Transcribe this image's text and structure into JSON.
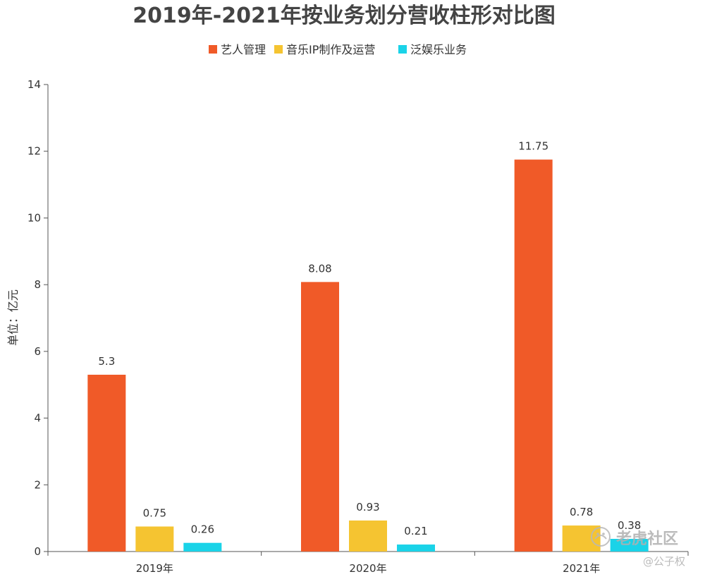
{
  "chart_data": {
    "type": "bar",
    "title": "2019年-2021年按业务划分营收柱形对比图",
    "ylabel": "单位：亿元",
    "xlabel": "",
    "categories": [
      "2019年",
      "2020年",
      "2021年"
    ],
    "ylim": [
      0,
      14
    ],
    "yticks": [
      0,
      2,
      4,
      6,
      8,
      10,
      12,
      14
    ],
    "grid": false,
    "legend_position": "top-center",
    "series": [
      {
        "name": "艺人管理",
        "values": [
          5.3,
          8.08,
          11.75
        ],
        "color": "#f05a28"
      },
      {
        "name": "音乐IP制作及运营",
        "values": [
          0.75,
          0.93,
          0.78
        ],
        "color": "#f5c431"
      },
      {
        "name": "泛娱乐业务",
        "values": [
          0.26,
          0.21,
          0.38
        ],
        "color": "#1ad3e8"
      }
    ],
    "data_labels": [
      [
        "5.3",
        "8.08",
        "11.75"
      ],
      [
        "0.75",
        "0.93",
        "0.78"
      ],
      [
        "0.26",
        "0.21",
        "0.38"
      ]
    ]
  },
  "watermark": {
    "brand": "老虎社区",
    "author": "@公子权",
    "icon": "tiger-logo-icon"
  }
}
